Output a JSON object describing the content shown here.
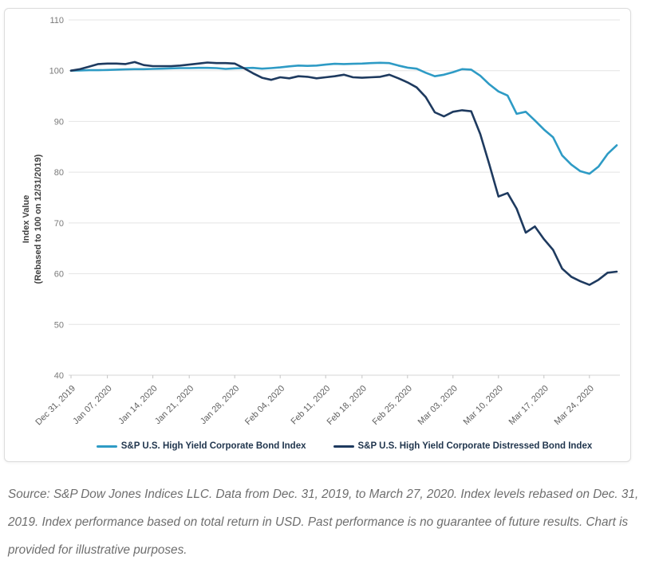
{
  "source_note": "Source: S&P Dow Jones Indices LLC. Data from Dec. 31, 2019, to March 27, 2020. Index levels rebased on Dec. 31, 2019. Index performance based on total return in USD. Past performance is no guarantee of future results. Chart is provided for illustrative purposes.",
  "chart_data": {
    "type": "line",
    "title": "",
    "xlabel": "",
    "ylabel_line1": "Index Value",
    "ylabel_line2": "(Rebased to 100 on 12/31/2019)",
    "ylim": [
      40,
      110
    ],
    "y_ticks": [
      110,
      100,
      90,
      80,
      70,
      60,
      50,
      40
    ],
    "grid": true,
    "legend_position": "bottom",
    "grid_color": "#e4e4e4",
    "axis_color": "#d6d6d6",
    "x_tick_labels": [
      "Dec 31, 2019",
      "Jan 07, 2020",
      "Jan 14, 2020",
      "Jan 21, 2020",
      "Jan 28, 2020",
      "Feb 04, 2020",
      "Feb 11, 2020",
      "Feb 18, 2020",
      "Feb 25, 2020",
      "Mar 03, 2020",
      "Mar 10, 2020",
      "Mar 17, 2020",
      "Mar 24, 2020"
    ],
    "x_tick_indices": [
      0,
      4,
      9,
      13,
      18,
      23,
      28,
      32,
      37,
      42,
      47,
      52,
      57
    ],
    "x": [
      "Dec 31, 2019",
      "Jan 02, 2020",
      "Jan 03, 2020",
      "Jan 06, 2020",
      "Jan 07, 2020",
      "Jan 08, 2020",
      "Jan 09, 2020",
      "Jan 10, 2020",
      "Jan 13, 2020",
      "Jan 14, 2020",
      "Jan 15, 2020",
      "Jan 16, 2020",
      "Jan 17, 2020",
      "Jan 21, 2020",
      "Jan 22, 2020",
      "Jan 23, 2020",
      "Jan 24, 2020",
      "Jan 27, 2020",
      "Jan 28, 2020",
      "Jan 29, 2020",
      "Jan 30, 2020",
      "Jan 31, 2020",
      "Feb 03, 2020",
      "Feb 04, 2020",
      "Feb 05, 2020",
      "Feb 06, 2020",
      "Feb 07, 2020",
      "Feb 10, 2020",
      "Feb 11, 2020",
      "Feb 12, 2020",
      "Feb 13, 2020",
      "Feb 14, 2020",
      "Feb 18, 2020",
      "Feb 19, 2020",
      "Feb 20, 2020",
      "Feb 21, 2020",
      "Feb 24, 2020",
      "Feb 25, 2020",
      "Feb 26, 2020",
      "Feb 27, 2020",
      "Feb 28, 2020",
      "Mar 02, 2020",
      "Mar 03, 2020",
      "Mar 04, 2020",
      "Mar 05, 2020",
      "Mar 06, 2020",
      "Mar 09, 2020",
      "Mar 10, 2020",
      "Mar 11, 2020",
      "Mar 12, 2020",
      "Mar 13, 2020",
      "Mar 16, 2020",
      "Mar 17, 2020",
      "Mar 18, 2020",
      "Mar 19, 2020",
      "Mar 20, 2020",
      "Mar 23, 2020",
      "Mar 24, 2020",
      "Mar 25, 2020",
      "Mar 26, 2020",
      "Mar 27, 2020"
    ],
    "series": [
      {
        "name": "S&P U.S. High Yield Corporate Bond Index",
        "color": "#2e9bc5",
        "values": [
          100,
          100.05,
          100.1,
          100.1,
          100.15,
          100.2,
          100.25,
          100.3,
          100.3,
          100.35,
          100.4,
          100.45,
          100.5,
          100.5,
          100.55,
          100.55,
          100.5,
          100.35,
          100.45,
          100.5,
          100.55,
          100.4,
          100.5,
          100.65,
          100.85,
          101,
          100.95,
          101,
          101.2,
          101.35,
          101.3,
          101.35,
          101.4,
          101.5,
          101.55,
          101.5,
          101,
          100.6,
          100.4,
          99.6,
          98.9,
          99.2,
          99.7,
          100.3,
          100.2,
          99,
          97.3,
          95.9,
          95.1,
          91.5,
          91.9,
          90.2,
          88.4,
          86.9,
          83.3,
          81.5,
          80.2,
          79.7,
          81.1,
          83.6,
          85.3
        ]
      },
      {
        "name": "S&P U.S. High Yield Corporate Distressed Bond Index",
        "color": "#1e3a5f",
        "values": [
          100,
          100.3,
          100.8,
          101.3,
          101.4,
          101.4,
          101.3,
          101.7,
          101.1,
          100.9,
          100.9,
          100.9,
          101,
          101.2,
          101.4,
          101.6,
          101.5,
          101.5,
          101.4,
          100.5,
          99.5,
          98.6,
          98.2,
          98.7,
          98.5,
          98.9,
          98.8,
          98.5,
          98.7,
          98.9,
          99.2,
          98.7,
          98.6,
          98.7,
          98.8,
          99.2,
          98.5,
          97.7,
          96.7,
          94.8,
          91.8,
          91,
          91.9,
          92.2,
          92,
          87.5,
          81.5,
          75.2,
          75.9,
          72.8,
          68.1,
          69.3,
          66.8,
          64.7,
          61,
          59.4,
          58.5,
          57.8,
          58.8,
          60.2,
          60.4
        ]
      }
    ]
  }
}
